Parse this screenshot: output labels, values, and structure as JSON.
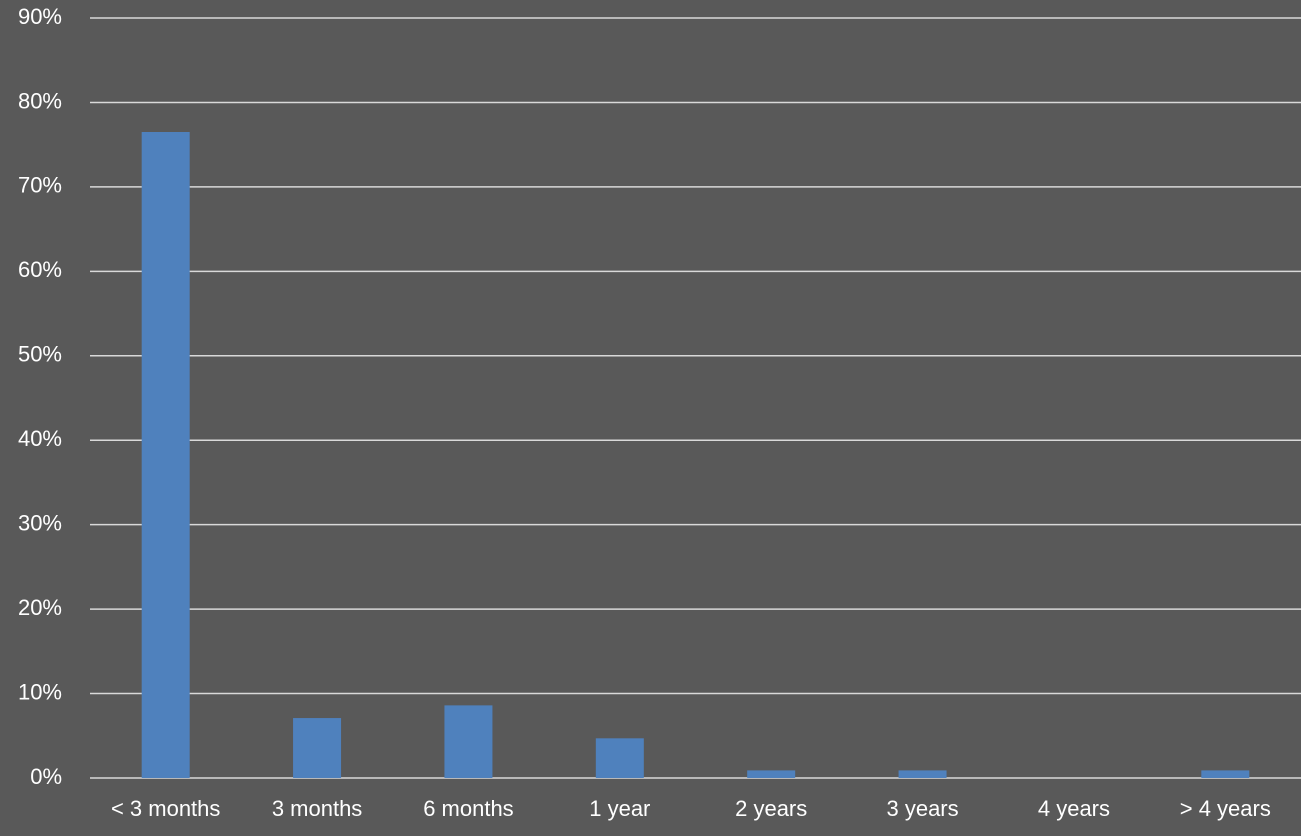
{
  "chart_data": {
    "type": "bar",
    "title": "",
    "xlabel": "",
    "ylabel": "",
    "ylim": [
      0,
      90
    ],
    "y_ticks": [
      0,
      10,
      20,
      30,
      40,
      50,
      60,
      70,
      80,
      90
    ],
    "y_tick_format": "{v}%",
    "grid": true,
    "legend": "none",
    "categories": [
      "< 3 months",
      "3 months",
      "6 months",
      "1 year",
      "2 years",
      "3 years",
      "4 years",
      "> 4 years"
    ],
    "series": [
      {
        "values": [
          76.5,
          7.1,
          8.6,
          4.7,
          0.9,
          0.9,
          0.0,
          0.9
        ],
        "color": "#4f81bd"
      }
    ]
  },
  "colors": {
    "background": "#595959",
    "gridline": "#d9d9d9",
    "text": "#ffffff"
  }
}
